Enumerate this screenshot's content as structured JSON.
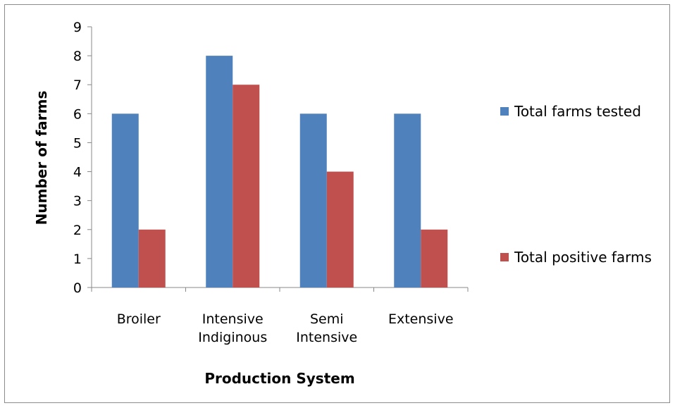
{
  "chart_data": {
    "type": "bar",
    "categories": [
      [
        "Broiler"
      ],
      [
        "Intensive",
        "Indiginous"
      ],
      [
        "Semi",
        "Intensive"
      ],
      [
        "Extensive"
      ]
    ],
    "series": [
      {
        "name": "Total farms tested",
        "color": "#4f81bd",
        "values": [
          6,
          8,
          6,
          6
        ]
      },
      {
        "name": "Total positive farms",
        "color": "#c0504d",
        "values": [
          2,
          7,
          4,
          2
        ]
      }
    ],
    "xlabel": "Production System",
    "ylabel": "Number of farms",
    "ylim": [
      0,
      9
    ],
    "yticks": [
      0,
      1,
      2,
      3,
      4,
      5,
      6,
      7,
      8,
      9
    ],
    "grid": false,
    "legend": "right"
  }
}
